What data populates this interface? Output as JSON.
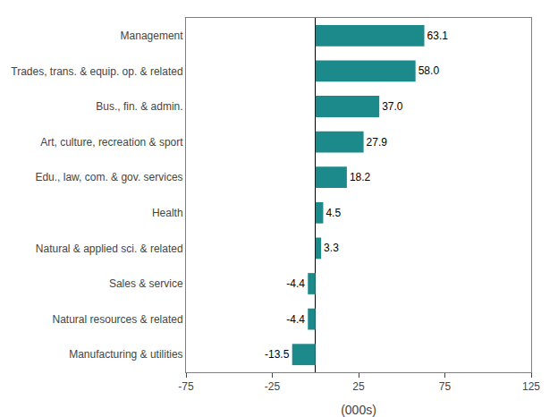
{
  "chart_data": {
    "type": "bar",
    "orientation": "horizontal",
    "categories": [
      "Manufacturing & utilities",
      "Natural resources & related",
      "Sales & service",
      "Natural & applied sci. & related",
      "Health",
      "Edu., law, com. & gov. services",
      "Art, culture, recreation & sport",
      "Bus., fin. & admin.",
      "Trades, trans. & equip. op. & related",
      "Management"
    ],
    "values": [
      -13.5,
      -4.4,
      -4.4,
      3.3,
      4.5,
      18.2,
      27.9,
      37.0,
      58.0,
      63.1
    ],
    "value_labels": [
      "-13.5",
      "-4.4",
      "-4.4",
      "3.3",
      "4.5",
      "18.2",
      "27.9",
      "37.0",
      "58.0",
      "63.1"
    ],
    "data_labels": true,
    "color": "#1c8a8a",
    "xlabel": "(000s)",
    "xlim": [
      -75,
      125
    ],
    "xticks": [
      -75,
      -25,
      25,
      75,
      125
    ],
    "grid": false
  }
}
